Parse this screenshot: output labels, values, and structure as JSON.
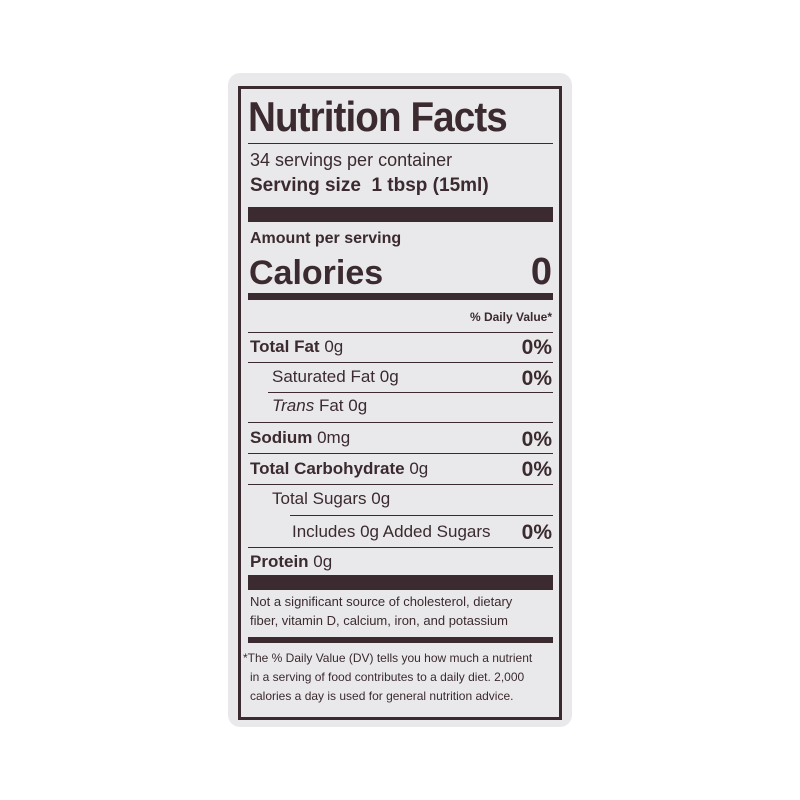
{
  "label": {
    "title": "Nutrition Facts",
    "servings_per_container": "34 servings per container",
    "serving_size_label": "Serving size",
    "serving_size_value": "1 tbsp (15ml)",
    "amount_per_serving": "Amount per serving",
    "calories_label": "Calories",
    "calories_value": "0",
    "daily_value_header": "% Daily Value*",
    "nutrients": [
      {
        "name": "Total Fat",
        "amount": "0g",
        "dv": "0%"
      },
      {
        "name": "Saturated Fat",
        "amount": "0g",
        "dv": "0%"
      },
      {
        "name": "Trans",
        "name_suffix": "Fat",
        "amount": "0g",
        "dv": ""
      },
      {
        "name": "Sodium",
        "amount": "0mg",
        "dv": "0%"
      },
      {
        "name": "Total Carbohydrate",
        "amount": "0g",
        "dv": "0%"
      },
      {
        "name": "Total Sugars",
        "amount": "0g",
        "dv": ""
      },
      {
        "name": "Includes",
        "amount": "0g",
        "name_suffix": "Added Sugars",
        "dv": "0%"
      },
      {
        "name": "Protein",
        "amount": "0g",
        "dv": ""
      }
    ],
    "not_significant": [
      "Not a significant source of cholesterol, dietary",
      "fiber, vitamin D, calcium, iron, and potassium"
    ],
    "footnote": [
      "*The % Daily Value (DV) tells you how much a nutrient",
      "in a serving of food contributes to a daily diet. 2,000",
      "calories a day is used for general nutrition advice."
    ]
  },
  "colors": {
    "ink": "#3b2a2f",
    "label_background": "#e9e9eb"
  }
}
